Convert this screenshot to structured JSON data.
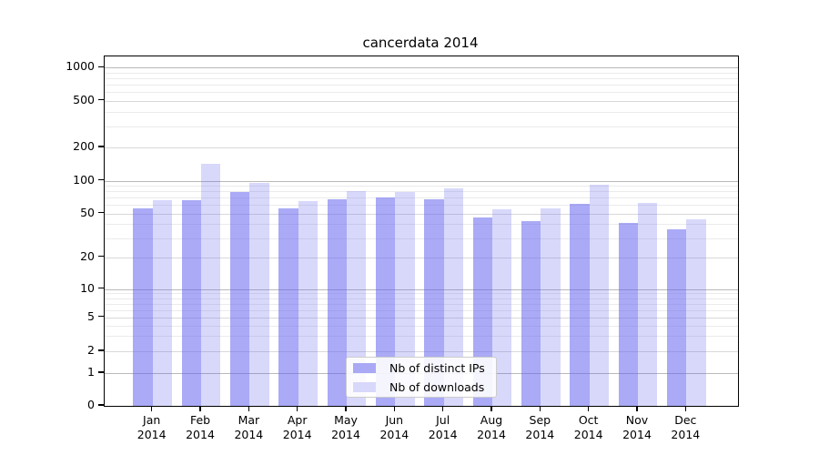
{
  "title": "cancerdata 2014",
  "legend": {
    "items": [
      {
        "label": "Nb of distinct IPs"
      },
      {
        "label": "Nb of downloads"
      }
    ]
  },
  "chart_data": {
    "type": "bar",
    "title": "cancerdata 2014",
    "scale_y": "symlog",
    "grid": true,
    "legend_position": "lower center",
    "categories": [
      "Jan",
      "Feb",
      "Mar",
      "Apr",
      "May",
      "Jun",
      "Jul",
      "Aug",
      "Sep",
      "Oct",
      "Nov",
      "Dec"
    ],
    "year_label": "2014",
    "series": [
      {
        "name": "Nb of distinct IPs",
        "color": "rgba(101,101,238,0.55)",
        "swatch": "#a9a9f5",
        "values": [
          56,
          67,
          79,
          56,
          68,
          70,
          68,
          46,
          43,
          62,
          41,
          36
        ]
      },
      {
        "name": "Nb of downloads",
        "color": "rgba(101,101,238,0.25)",
        "swatch": "#d8d8fa",
        "values": [
          67,
          142,
          95,
          65,
          81,
          79,
          85,
          55,
          56,
          92,
          63,
          44
        ]
      }
    ],
    "y_ticks": [
      0,
      1,
      2,
      5,
      10,
      20,
      50,
      100,
      200,
      500,
      1000
    ],
    "ylim": [
      0,
      1200
    ]
  }
}
